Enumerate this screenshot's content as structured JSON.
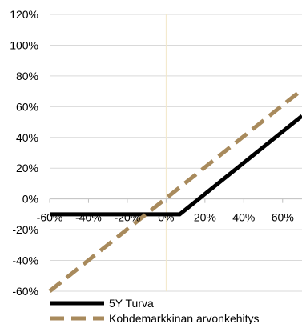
{
  "chart_data": {
    "type": "line",
    "title": "",
    "xlabel": "",
    "ylabel": "",
    "x_tick_labels": [
      "-60%",
      "-40%",
      "-20%",
      "0%",
      "20%",
      "40%",
      "60%"
    ],
    "y_tick_labels": [
      "120%",
      "100%",
      "80%",
      "60%",
      "40%",
      "20%",
      "0%",
      "-20%",
      "-40%",
      "-60%"
    ],
    "x_ticks": [
      -60,
      -40,
      -20,
      0,
      20,
      40,
      60
    ],
    "y_ticks": [
      120,
      100,
      80,
      60,
      40,
      20,
      0,
      -20,
      -40,
      -60
    ],
    "xlim": [
      -60,
      70
    ],
    "ylim": [
      -60,
      120
    ],
    "grid": "horizontal",
    "legend_position": "bottom-left",
    "series": [
      {
        "name": "5Y Turva",
        "color": "#000000",
        "style": "solid",
        "x": [
          -60,
          7,
          70
        ],
        "y": [
          -10,
          -10,
          54
        ]
      },
      {
        "name": "Kohdemarkkinan arvonkehitys",
        "color": "#a88a5c",
        "style": "dashed",
        "x": [
          -60,
          70
        ],
        "y": [
          -60,
          71
        ]
      }
    ]
  }
}
